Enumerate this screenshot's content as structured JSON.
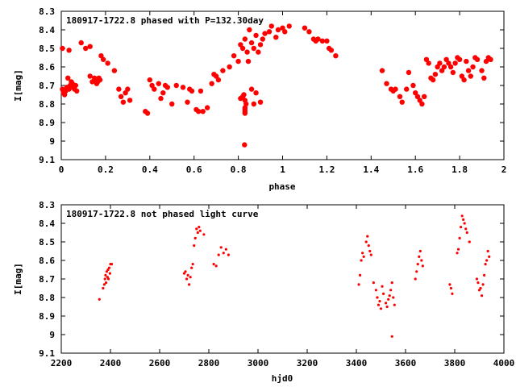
{
  "chart_data": [
    {
      "type": "scatter",
      "title": "180917-1722.8 phased with P=132.30day",
      "xlabel": "phase",
      "ylabel": "I[mag]",
      "xlim": [
        0,
        2
      ],
      "ylim": [
        9.1,
        8.3
      ],
      "y_inverted": true,
      "xticks": [
        0,
        0.2,
        0.4,
        0.6,
        0.8,
        1,
        1.2,
        1.4,
        1.6,
        1.8,
        2
      ],
      "xtick_labels": [
        "0",
        "0.2",
        "0.4",
        "0.6",
        "0.8",
        "1",
        "1.2",
        "1.4",
        "1.6",
        "1.8",
        "2"
      ],
      "yticks": [
        8.3,
        8.4,
        8.5,
        8.6,
        8.7,
        8.8,
        8.9,
        9,
        9.1
      ],
      "ytick_labels": [
        "8.3",
        "8.4",
        "8.5",
        "8.6",
        "8.7",
        "8.8",
        "8.9",
        "9",
        "9.1"
      ],
      "grid": false,
      "color": "#ff0000",
      "marker": "filled-circle",
      "series": [
        {
          "x": [
            0.005,
            0.01,
            0.015,
            0.02,
            0.025,
            0.03,
            0.035,
            0.04,
            0.045,
            0.05,
            0.055,
            0.06,
            0.065,
            0.07,
            0.005,
            0.035,
            0.09,
            0.11,
            0.13,
            0.13,
            0.14,
            0.15,
            0.155,
            0.16,
            0.165,
            0.17,
            0.175,
            0.18,
            0.19,
            0.21,
            0.24,
            0.26,
            0.27,
            0.28,
            0.29,
            0.3,
            0.31,
            0.38,
            0.39,
            0.4,
            0.41,
            0.42,
            0.44,
            0.45,
            0.46,
            0.47,
            0.48,
            0.5,
            0.52,
            0.55,
            0.57,
            0.58,
            0.59,
            0.61,
            0.62,
            0.63,
            0.64,
            0.66,
            0.68,
            0.69,
            0.7,
            0.71,
            0.73,
            0.76,
            0.78,
            0.8,
            0.81,
            0.82,
            0.83,
            0.84,
            0.845,
            0.85,
            0.86,
            0.87,
            0.88,
            0.89,
            0.9,
            0.91,
            0.92,
            0.94,
            0.95,
            0.97,
            0.98,
            1.0,
            1.01,
            1.03,
            0.81,
            0.82,
            0.825,
            0.83,
            0.835,
            0.83,
            0.83,
            0.83,
            0.83,
            0.86,
            0.87,
            0.88,
            0.9,
            0.828,
            1.1,
            1.12,
            1.14,
            1.15,
            1.16,
            1.18,
            1.2,
            1.21,
            1.22,
            1.24,
            1.45,
            1.47,
            1.49,
            1.5,
            1.51,
            1.53,
            1.54,
            1.56,
            1.57,
            1.59,
            1.6,
            1.61,
            1.62,
            1.63,
            1.64,
            1.65,
            1.66,
            1.67,
            1.68,
            1.69,
            1.7,
            1.71,
            1.72,
            1.73,
            1.74,
            1.75,
            1.76,
            1.77,
            1.78,
            1.79,
            1.8,
            1.81,
            1.82,
            1.83,
            1.84,
            1.85,
            1.86,
            1.87,
            1.88,
            1.9,
            1.91,
            1.92,
            1.93,
            1.94
          ],
          "y": [
            8.72,
            8.74,
            8.75,
            8.73,
            8.71,
            8.66,
            8.72,
            8.7,
            8.68,
            8.69,
            8.71,
            8.72,
            8.7,
            8.73,
            8.5,
            8.51,
            8.47,
            8.5,
            8.49,
            8.65,
            8.68,
            8.66,
            8.67,
            8.69,
            8.68,
            8.66,
            8.67,
            8.54,
            8.56,
            8.58,
            8.62,
            8.72,
            8.76,
            8.79,
            8.74,
            8.72,
            8.78,
            8.84,
            8.85,
            8.67,
            8.7,
            8.72,
            8.69,
            8.77,
            8.74,
            8.7,
            8.71,
            8.8,
            8.7,
            8.71,
            8.79,
            8.72,
            8.73,
            8.83,
            8.84,
            8.73,
            8.84,
            8.82,
            8.69,
            8.64,
            8.65,
            8.67,
            8.62,
            8.6,
            8.54,
            8.57,
            8.48,
            8.5,
            8.45,
            8.52,
            8.57,
            8.4,
            8.47,
            8.5,
            8.43,
            8.52,
            8.48,
            8.45,
            8.42,
            8.41,
            8.38,
            8.44,
            8.4,
            8.39,
            8.41,
            8.38,
            8.77,
            8.76,
            8.75,
            8.78,
            8.8,
            8.82,
            8.84,
            8.85,
            8.83,
            8.72,
            8.8,
            8.74,
            8.79,
            9.02,
            8.39,
            8.41,
            8.45,
            8.46,
            8.45,
            8.46,
            8.46,
            8.5,
            8.51,
            8.54,
            8.62,
            8.69,
            8.72,
            8.73,
            8.72,
            8.76,
            8.79,
            8.72,
            8.63,
            8.7,
            8.74,
            8.76,
            8.78,
            8.8,
            8.76,
            8.56,
            8.58,
            8.66,
            8.67,
            8.64,
            8.6,
            8.58,
            8.62,
            8.6,
            8.56,
            8.58,
            8.6,
            8.63,
            8.58,
            8.55,
            8.56,
            8.65,
            8.67,
            8.57,
            8.62,
            8.65,
            8.6,
            8.55,
            8.56,
            8.62,
            8.66,
            8.57,
            8.55,
            8.56
          ]
        }
      ]
    },
    {
      "type": "scatter",
      "title": "180917-1722.8 not phased light curve",
      "xlabel": "hjd0",
      "ylabel": "I[mag]",
      "xlim": [
        2200,
        4000
      ],
      "ylim": [
        9.1,
        8.3
      ],
      "y_inverted": true,
      "xticks": [
        2200,
        2400,
        2600,
        2800,
        3000,
        3200,
        3400,
        3600,
        3800,
        4000
      ],
      "xtick_labels": [
        "2200",
        "2400",
        "2600",
        "2800",
        "3000",
        "3200",
        "3400",
        "3600",
        "3800",
        "4000"
      ],
      "yticks": [
        8.3,
        8.4,
        8.5,
        8.6,
        8.7,
        8.8,
        8.9,
        9,
        9.1
      ],
      "ytick_labels": [
        "8.3",
        "8.4",
        "8.5",
        "8.6",
        "8.7",
        "8.8",
        "8.9",
        "9",
        "9.1"
      ],
      "grid": false,
      "color": "#ff0000",
      "marker": "small-dot",
      "series": [
        {
          "x": [
            2355,
            2370,
            2375,
            2378,
            2380,
            2382,
            2385,
            2388,
            2390,
            2392,
            2395,
            2398,
            2400,
            2405,
            2700,
            2705,
            2710,
            2715,
            2720,
            2725,
            2730,
            2735,
            2740,
            2745,
            2750,
            2755,
            2760,
            2765,
            2780,
            2820,
            2830,
            2840,
            2850,
            2860,
            2870,
            2880,
            3410,
            3415,
            3420,
            3425,
            3430,
            3440,
            3445,
            3450,
            3455,
            3460,
            3470,
            3480,
            3485,
            3490,
            3495,
            3500,
            3505,
            3510,
            3520,
            3525,
            3530,
            3535,
            3540,
            3545,
            3550,
            3555,
            3640,
            3645,
            3650,
            3655,
            3660,
            3665,
            3670,
            3780,
            3785,
            3790,
            3810,
            3815,
            3820,
            3825,
            3830,
            3835,
            3840,
            3845,
            3850,
            3860,
            3890,
            3895,
            3900,
            3905,
            3910,
            3915,
            3920,
            3925,
            3930,
            3935,
            3940,
            3545
          ],
          "y": [
            8.81,
            8.75,
            8.73,
            8.7,
            8.68,
            8.72,
            8.66,
            8.69,
            8.65,
            8.7,
            8.64,
            8.67,
            8.62,
            8.62,
            8.67,
            8.66,
            8.7,
            8.68,
            8.73,
            8.69,
            8.64,
            8.62,
            8.52,
            8.48,
            8.43,
            8.45,
            8.42,
            8.44,
            8.46,
            8.62,
            8.63,
            8.57,
            8.53,
            8.56,
            8.54,
            8.57,
            8.73,
            8.68,
            8.6,
            8.56,
            8.58,
            8.5,
            8.47,
            8.52,
            8.55,
            8.57,
            8.72,
            8.76,
            8.8,
            8.84,
            8.82,
            8.86,
            8.74,
            8.78,
            8.83,
            8.85,
            8.81,
            8.79,
            8.76,
            8.72,
            8.8,
            8.84,
            8.7,
            8.66,
            8.62,
            8.58,
            8.55,
            8.6,
            8.63,
            8.73,
            8.75,
            8.78,
            8.56,
            8.54,
            8.48,
            8.42,
            8.36,
            8.38,
            8.4,
            8.43,
            8.45,
            8.5,
            8.7,
            8.72,
            8.76,
            8.75,
            8.79,
            8.73,
            8.68,
            8.62,
            8.6,
            8.55,
            8.58,
            9.01
          ]
        }
      ]
    }
  ]
}
